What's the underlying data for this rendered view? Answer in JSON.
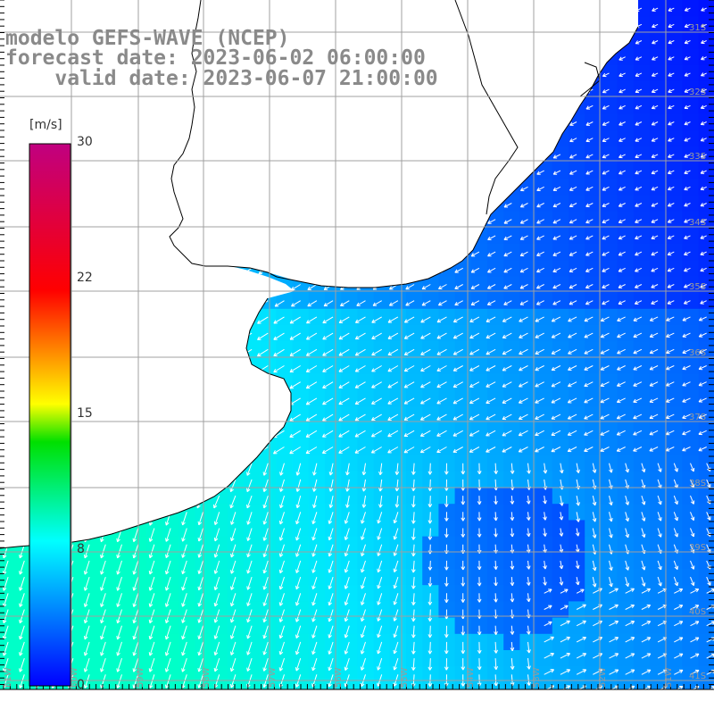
{
  "title": {
    "line1": "modelo GEFS-WAVE (NCEP)",
    "line2": "forecast date: 2023-06-02 06:00:00",
    "line3": "    valid date: 2023-06-07 21:00:00"
  },
  "colorbar": {
    "unit": "[m/s]",
    "min": 0,
    "max": 30,
    "ticks": [
      "0",
      "8",
      "15",
      "22",
      "30"
    ],
    "stops": [
      "#0000ff",
      "#00ffff",
      "#00ff00",
      "#ffff00",
      "#ff0000",
      "#c00080"
    ]
  },
  "map": {
    "lat_labels": [
      "31S",
      "32S",
      "33S",
      "34S",
      "35S",
      "36S",
      "37S",
      "38S",
      "39S",
      "40S",
      "41S"
    ],
    "lon_labels": [
      "61W",
      "60W",
      "59W",
      "58W",
      "57W",
      "56W",
      "55W",
      "54W",
      "53W",
      "52W",
      "51W"
    ],
    "land_color": "#ffffff",
    "grid_color": "#a0a0a0"
  }
}
